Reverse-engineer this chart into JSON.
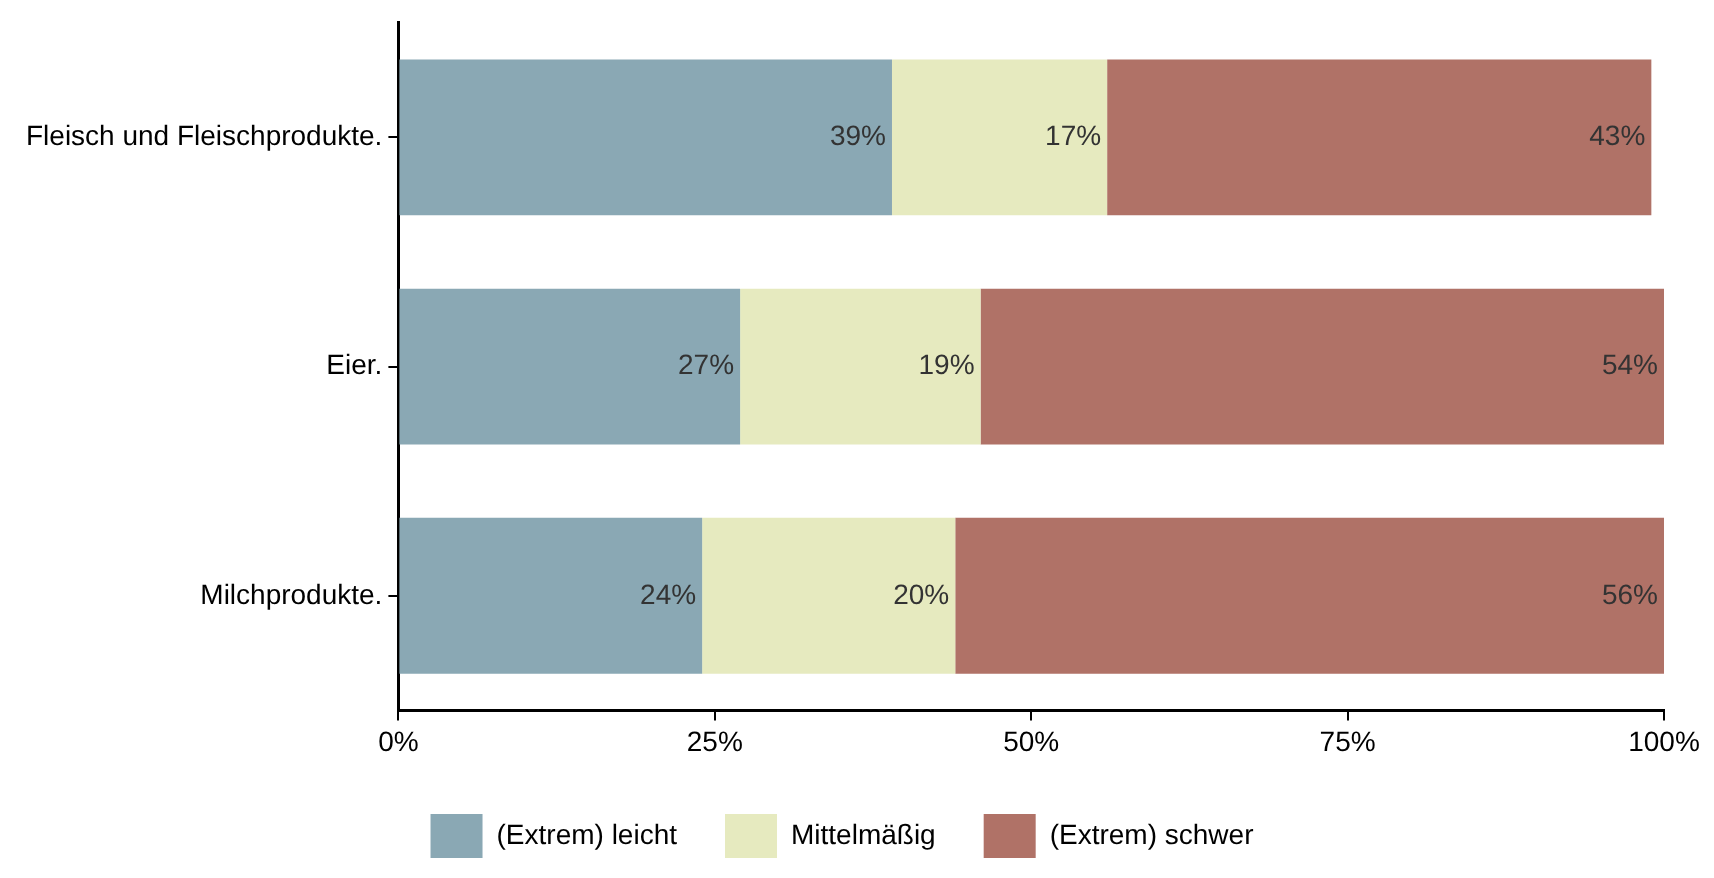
{
  "chart_data": {
    "type": "bar",
    "orientation": "horizontal",
    "stacked": true,
    "categories": [
      "Fleisch und Fleischprodukte.",
      "Eier.",
      "Milchprodukte."
    ],
    "series": [
      {
        "name": "(Extrem) leicht",
        "color": "#8aa8b4",
        "values": [
          39,
          27,
          24
        ],
        "value_labels": [
          "39%",
          "27%",
          "24%"
        ]
      },
      {
        "name": "Mittelmäßig",
        "color": "#e6eabf",
        "values": [
          17,
          19,
          20
        ],
        "value_labels": [
          "17%",
          "19%",
          "20%"
        ]
      },
      {
        "name": "(Extrem) schwer",
        "color": "#b07267",
        "values": [
          43,
          54,
          56
        ],
        "value_labels": [
          "43%",
          "54%",
          "56%"
        ]
      }
    ],
    "xlim": [
      0,
      100
    ],
    "xticks": [
      {
        "value": 0,
        "label": "0%"
      },
      {
        "value": 25,
        "label": "25%"
      },
      {
        "value": 50,
        "label": "50%"
      },
      {
        "value": 75,
        "label": "75%"
      },
      {
        "value": 100,
        "label": "100%"
      }
    ],
    "grid": false,
    "legend": "bottom"
  }
}
